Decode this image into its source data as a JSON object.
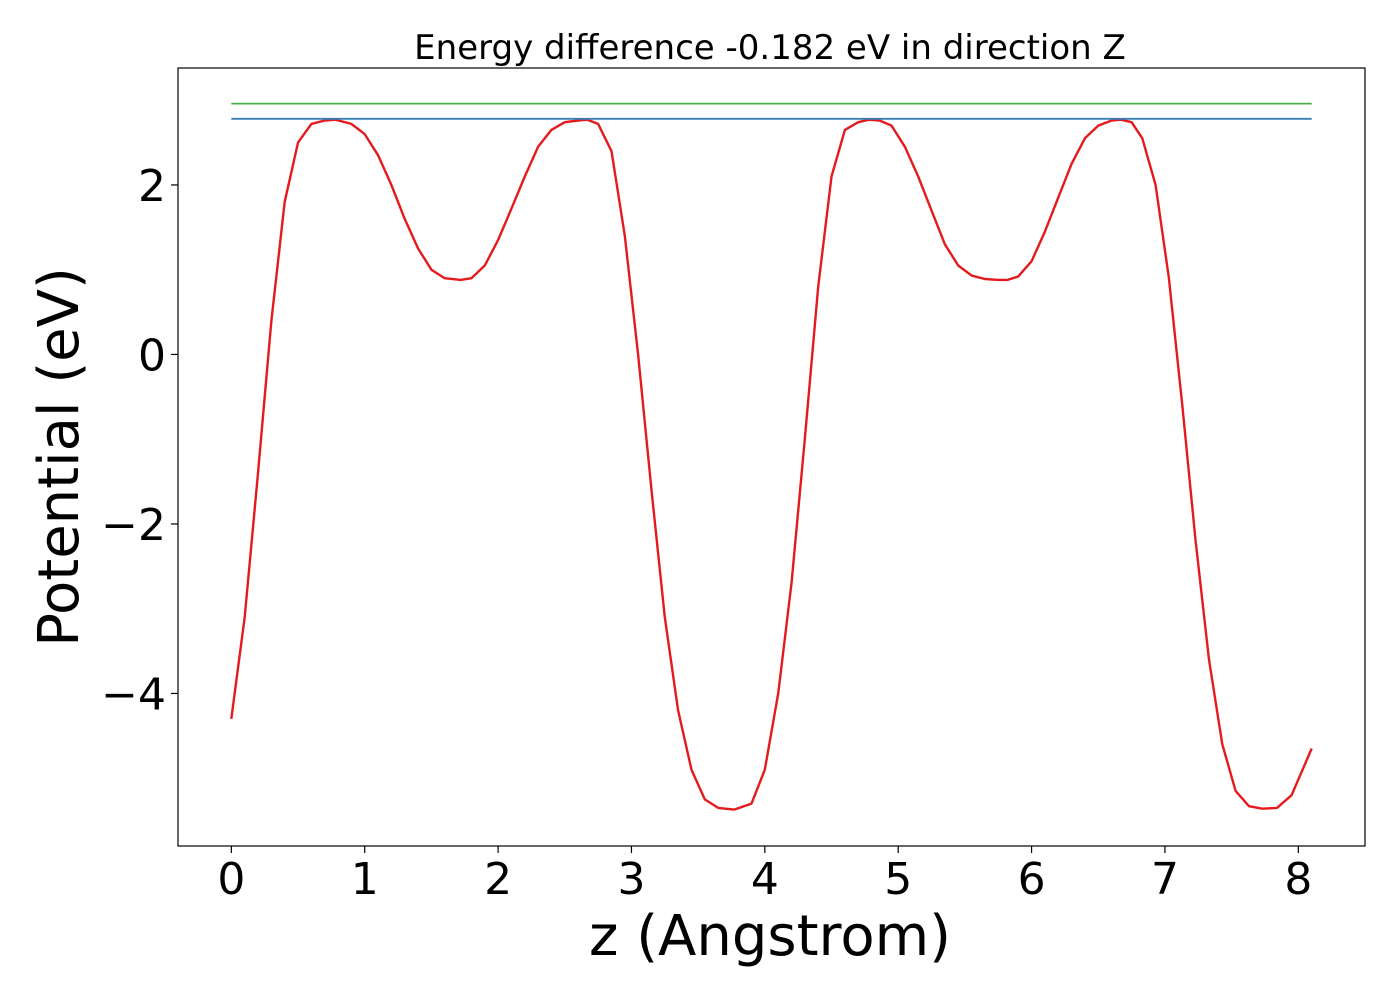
{
  "chart_data": {
    "type": "line",
    "title": "Energy difference -0.182 eV in direction Z",
    "xlabel": "z (Angstrom)",
    "ylabel": "Potential (eV)",
    "xlim": [
      -0.4,
      8.5
    ],
    "ylim": [
      -5.8,
      3.38
    ],
    "xticks": [
      0,
      1,
      2,
      3,
      4,
      5,
      6,
      7,
      8
    ],
    "xtick_labels": [
      "0",
      "1",
      "2",
      "3",
      "4",
      "5",
      "6",
      "7",
      "8"
    ],
    "yticks": [
      2,
      0,
      -2,
      -4
    ],
    "ytick_labels": [
      "2",
      "0",
      "−2",
      "−4"
    ],
    "grid": false,
    "series": [
      {
        "color": "#e41a1c",
        "x": [
          0,
          0.1,
          0.2,
          0.3,
          0.4,
          0.5,
          0.6,
          0.7,
          0.78,
          0.9,
          1.0,
          1.1,
          1.2,
          1.3,
          1.4,
          1.5,
          1.6,
          1.72,
          1.8,
          1.9,
          2.0,
          2.1,
          2.2,
          2.3,
          2.4,
          2.5,
          2.6,
          2.67,
          2.75,
          2.85,
          2.95,
          3.05,
          3.15,
          3.25,
          3.35,
          3.45,
          3.55,
          3.65,
          3.77,
          3.9,
          4.0,
          4.1,
          4.2,
          4.3,
          4.4,
          4.5,
          4.6,
          4.7,
          4.78,
          4.86,
          4.95,
          5.05,
          5.15,
          5.25,
          5.35,
          5.45,
          5.55,
          5.65,
          5.75,
          5.82,
          5.9,
          6.0,
          6.1,
          6.2,
          6.3,
          6.4,
          6.5,
          6.6,
          6.67,
          6.75,
          6.83,
          6.93,
          7.03,
          7.13,
          7.23,
          7.33,
          7.43,
          7.53,
          7.63,
          7.73,
          7.84,
          7.95,
          8.1
        ],
        "y": [
          -4.3,
          -3.1,
          -1.4,
          0.4,
          1.8,
          2.5,
          2.72,
          2.76,
          2.77,
          2.72,
          2.6,
          2.35,
          2.0,
          1.6,
          1.25,
          1.0,
          0.9,
          0.88,
          0.9,
          1.05,
          1.35,
          1.72,
          2.1,
          2.45,
          2.65,
          2.74,
          2.76,
          2.77,
          2.72,
          2.4,
          1.4,
          0.0,
          -1.6,
          -3.1,
          -4.2,
          -4.9,
          -5.25,
          -5.35,
          -5.37,
          -5.3,
          -4.9,
          -4.0,
          -2.7,
          -1.0,
          0.8,
          2.1,
          2.65,
          2.74,
          2.77,
          2.76,
          2.7,
          2.45,
          2.1,
          1.7,
          1.3,
          1.05,
          0.93,
          0.89,
          0.88,
          0.88,
          0.92,
          1.1,
          1.45,
          1.85,
          2.25,
          2.55,
          2.7,
          2.76,
          2.77,
          2.74,
          2.55,
          2.0,
          0.9,
          -0.6,
          -2.2,
          -3.6,
          -4.6,
          -5.15,
          -5.33,
          -5.36,
          -5.35,
          -5.2,
          -4.65
        ]
      },
      {
        "color": "#377eb8",
        "x": [
          0,
          8.1
        ],
        "y": [
          2.78,
          2.78
        ]
      },
      {
        "color": "#4daf4a",
        "x": [
          0,
          8.1
        ],
        "y": [
          2.96,
          2.96
        ]
      }
    ]
  }
}
